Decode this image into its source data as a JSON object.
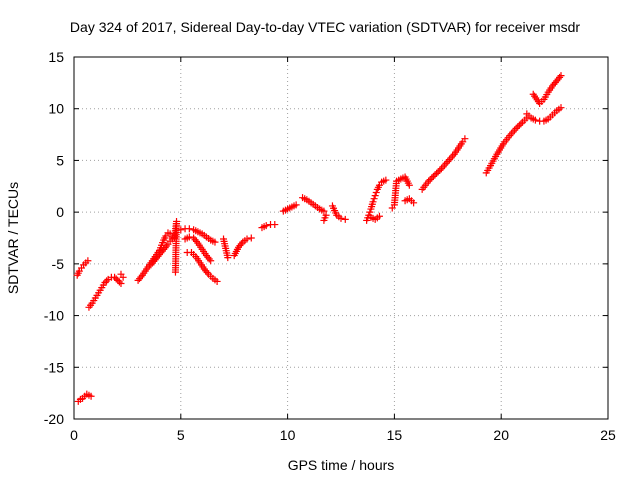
{
  "chart_data": {
    "type": "scatter",
    "title": "Day 324 of 2017, Sidereal Day-to-day VTEC variation (SDTVAR) for receiver msdr",
    "xlabel": "GPS time / hours",
    "ylabel": "SDTVAR / TECUs",
    "xlim": [
      0,
      25
    ],
    "ylim": [
      -20,
      15
    ],
    "xticks": [
      0,
      5,
      10,
      15,
      20,
      25
    ],
    "yticks": [
      -20,
      -15,
      -10,
      -5,
      0,
      5,
      10,
      15
    ],
    "grid": true,
    "marker": "plus",
    "color": "#ff0000",
    "series": [
      {
        "segments": [
          {
            "x": [
              0.15,
              0.25,
              0.35,
              0.45,
              0.55,
              0.65
            ],
            "y": [
              -6.1,
              -5.7,
              -5.4,
              -5.1,
              -4.9,
              -4.7
            ]
          },
          {
            "x": [
              0.2,
              0.3,
              0.4,
              0.5,
              0.6,
              0.8
            ],
            "y": [
              -18.3,
              -18.1,
              -18.0,
              -17.8,
              -17.6,
              -17.8
            ]
          },
          {
            "x": [
              0.7,
              0.85,
              1.0,
              1.15,
              1.3,
              1.45,
              1.6,
              1.75,
              1.9,
              2.05,
              2.2
            ],
            "y": [
              -9.2,
              -8.8,
              -8.3,
              -7.8,
              -7.3,
              -6.8,
              -6.5,
              -6.3,
              -6.3,
              -6.6,
              -6.9
            ]
          },
          {
            "x": [
              2.2,
              2.3
            ],
            "y": [
              -6.0,
              -6.3
            ]
          },
          {
            "x": [
              3.0,
              3.2,
              3.4,
              3.6,
              3.8,
              4.0,
              4.1,
              4.2,
              4.3,
              4.4,
              4.5,
              4.6
            ],
            "y": [
              -6.6,
              -6.1,
              -5.5,
              -4.9,
              -4.3,
              -3.7,
              -3.2,
              -2.7,
              -2.3,
              -2.0,
              -2.1,
              -2.4
            ]
          },
          {
            "x": [
              3.6,
              3.8,
              4.0,
              4.2,
              4.4,
              4.5,
              4.6
            ],
            "y": [
              -5.1,
              -4.6,
              -4.1,
              -3.6,
              -3.1,
              -2.8,
              -2.6
            ]
          },
          {
            "x": [
              4.7,
              4.8,
              4.75
            ],
            "y": [
              -2.5,
              -0.9,
              -5.8
            ]
          },
          {
            "x": [
              5.0,
              5.2,
              5.4,
              5.6,
              5.8,
              6.0,
              6.2,
              6.4,
              6.6
            ],
            "y": [
              -1.7,
              -1.6,
              -1.6,
              -1.7,
              -1.9,
              -2.1,
              -2.4,
              -2.7,
              -2.9
            ]
          },
          {
            "x": [
              5.2,
              5.4,
              5.6,
              5.8,
              6.0,
              6.2,
              6.4
            ],
            "y": [
              -2.6,
              -2.4,
              -2.5,
              -3.0,
              -3.6,
              -4.2,
              -4.7
            ]
          },
          {
            "x": [
              5.3,
              5.5,
              5.7,
              5.9,
              6.1,
              6.3,
              6.5,
              6.7
            ],
            "y": [
              -3.9,
              -3.9,
              -4.3,
              -4.9,
              -5.5,
              -6.0,
              -6.4,
              -6.7
            ]
          },
          {
            "x": [
              7.0,
              7.2
            ],
            "y": [
              -2.6,
              -4.4
            ]
          },
          {
            "x": [
              7.5,
              7.7,
              7.9,
              8.1,
              8.3
            ],
            "y": [
              -4.2,
              -3.4,
              -2.9,
              -2.6,
              -2.5
            ]
          },
          {
            "x": [
              8.8,
              9.0,
              9.2,
              9.4
            ],
            "y": [
              -1.5,
              -1.3,
              -1.2,
              -1.2
            ]
          },
          {
            "x": [
              9.8,
              10.0,
              10.2,
              10.4
            ],
            "y": [
              0.1,
              0.3,
              0.5,
              0.7
            ]
          },
          {
            "x": [
              10.7,
              10.9,
              11.1,
              11.3,
              11.5,
              11.7
            ],
            "y": [
              1.4,
              1.2,
              0.9,
              0.6,
              0.3,
              0.1
            ]
          },
          {
            "x": [
              11.7,
              11.8
            ],
            "y": [
              -0.8,
              -0.3
            ]
          },
          {
            "x": [
              12.1,
              12.3,
              12.5,
              12.7
            ],
            "y": [
              0.6,
              -0.3,
              -0.6,
              -0.7
            ]
          },
          {
            "x": [
              13.7,
              13.8,
              13.9,
              14.0,
              14.1,
              14.2,
              14.3,
              14.4,
              14.5,
              14.6
            ],
            "y": [
              -0.8,
              -0.3,
              0.3,
              1.0,
              1.6,
              2.2,
              2.6,
              2.9,
              3.0,
              3.1
            ]
          },
          {
            "x": [
              13.9,
              14.1,
              14.3
            ],
            "y": [
              -0.5,
              -0.7,
              -0.4
            ]
          },
          {
            "x": [
              14.9,
              15.0,
              15.1,
              15.3,
              15.5,
              15.7
            ],
            "y": [
              0.4,
              0.7,
              3.0,
              3.2,
              3.4,
              2.6
            ]
          },
          {
            "x": [
              15.5,
              15.7,
              15.9
            ],
            "y": [
              1.1,
              1.3,
              0.9
            ]
          },
          {
            "x": [
              16.3,
              16.6,
              16.9,
              17.2,
              17.5,
              17.8,
              18.0,
              18.2,
              18.3
            ],
            "y": [
              2.2,
              3.0,
              3.6,
              4.2,
              4.9,
              5.6,
              6.2,
              6.8,
              7.1
            ]
          },
          {
            "x": [
              19.3,
              19.5,
              19.8,
              20.1,
              20.4,
              20.7,
              21.0,
              21.2
            ],
            "y": [
              3.8,
              4.5,
              5.6,
              6.6,
              7.4,
              8.1,
              8.7,
              9.1
            ]
          },
          {
            "x": [
              21.2,
              21.4,
              21.6,
              21.8,
              22.0,
              22.2,
              22.4,
              22.6,
              22.8
            ],
            "y": [
              9.5,
              9.1,
              8.9,
              8.8,
              8.8,
              9.0,
              9.4,
              9.8,
              10.1
            ]
          },
          {
            "x": [
              21.5,
              21.8,
              22.0,
              22.2,
              22.4,
              22.6,
              22.8
            ],
            "y": [
              11.4,
              10.5,
              10.9,
              11.6,
              12.2,
              12.7,
              13.2
            ]
          }
        ]
      }
    ]
  }
}
